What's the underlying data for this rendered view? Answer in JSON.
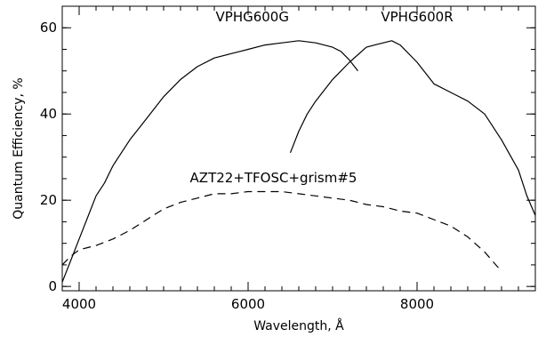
{
  "chart_data": {
    "type": "line",
    "title": "",
    "xlabel": "Wavelength, Å",
    "ylabel": "Quantum Efficiency, %",
    "xlim": [
      3800,
      9400
    ],
    "ylim": [
      -1,
      65
    ],
    "grid": false,
    "x_ticks": [
      4000,
      6000,
      8000
    ],
    "x_minor_step": 200,
    "y_ticks": [
      0,
      20,
      40,
      60
    ],
    "y_minor_step": 5,
    "series": [
      {
        "name": "VPHG600G",
        "style": "solid",
        "x": [
          3800,
          3900,
          4000,
          4100,
          4200,
          4300,
          4400,
          4500,
          4600,
          4800,
          5000,
          5200,
          5400,
          5600,
          5800,
          5900,
          6000,
          6200,
          6400,
          6600,
          6800,
          7000,
          7100,
          7200,
          7300
        ],
        "y": [
          1,
          6,
          11,
          16,
          21,
          24,
          28,
          31,
          34,
          39,
          44,
          48,
          51,
          53,
          54,
          54.5,
          55,
          56,
          56.5,
          57,
          56.5,
          55.5,
          54.5,
          52.5,
          50
        ]
      },
      {
        "name": "VPHG600R",
        "style": "solid",
        "x": [
          6500,
          6600,
          6700,
          6800,
          7000,
          7200,
          7400,
          7500,
          7600,
          7700,
          7800,
          8000,
          8200,
          8400,
          8600,
          8800,
          9000,
          9100,
          9200,
          9300,
          9400
        ],
        "y": [
          31,
          36,
          40,
          43,
          48,
          52,
          55.5,
          56,
          56.5,
          57,
          56,
          52,
          47,
          45,
          43,
          40,
          34,
          30.5,
          27,
          21,
          16.5
        ]
      },
      {
        "name": "AZT22+TFOSC+grism#5",
        "style": "dashed",
        "x": [
          3800,
          3900,
          4000,
          4100,
          4200,
          4400,
          4600,
          4800,
          5000,
          5200,
          5400,
          5600,
          5800,
          6000,
          6200,
          6400,
          6600,
          6800,
          7000,
          7200,
          7400,
          7600,
          7800,
          8000,
          8200,
          8400,
          8600,
          8800,
          9000
        ],
        "y": [
          5,
          7,
          8.5,
          9,
          9.5,
          11,
          13,
          15.5,
          18,
          19.5,
          20.5,
          21.5,
          21.5,
          22,
          22,
          22,
          21.5,
          21,
          20.5,
          20,
          19,
          18.5,
          17.5,
          17,
          15.5,
          14,
          11.5,
          8,
          3.5
        ]
      }
    ],
    "annotations": [
      {
        "text": "VPHG600G",
        "x": 6050,
        "y": 61.5
      },
      {
        "text": "VPHG600R",
        "x": 8000,
        "y": 61.5
      },
      {
        "text": "AZT22+TFOSC+grism#5",
        "x": 6300,
        "y": 24.2
      }
    ]
  }
}
